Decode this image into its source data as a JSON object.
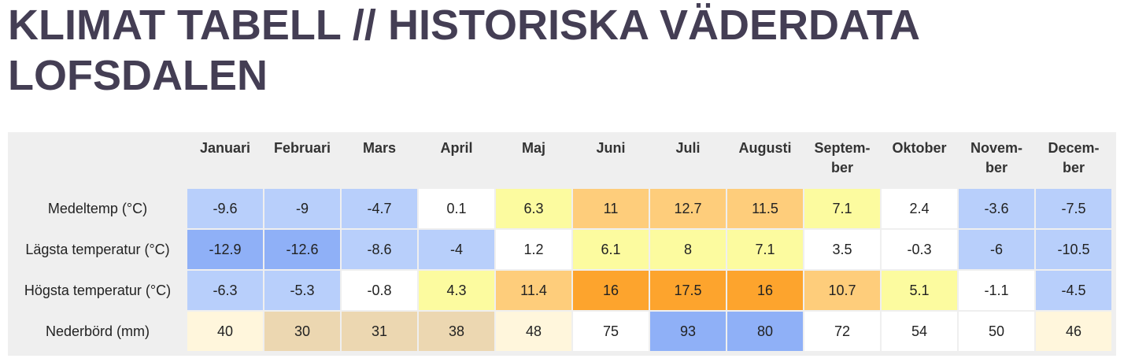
{
  "title_line1": "KLIMAT TABELL // HISTORISKA VÄDERDATA",
  "title_line2": "LOFSDALEN",
  "months": [
    "Januari",
    "Februari",
    "Mars",
    "April",
    "Maj",
    "Juni",
    "Juli",
    "Augusti",
    "Septem-\nber",
    "Oktober",
    "Novem-\nber",
    "Decem-\nber"
  ],
  "rows": [
    {
      "label": "Medeltemp (°C)",
      "values": [
        "-9.6",
        "-9",
        "-4.7",
        "0.1",
        "6.3",
        "11",
        "12.7",
        "11.5",
        "7.1",
        "2.4",
        "-3.6",
        "-7.5"
      ],
      "colors": [
        "#b8cffb",
        "#b8cffb",
        "#b8cffb",
        "#ffffff",
        "#fcfb9f",
        "#fecd7b",
        "#fecd7b",
        "#fecd7b",
        "#fcfb9f",
        "#ffffff",
        "#b8cffb",
        "#b8cffb"
      ]
    },
    {
      "label": "Lägsta temperatur (°C)",
      "values": [
        "-12.9",
        "-12.6",
        "-8.6",
        "-4",
        "1.2",
        "6.1",
        "8",
        "7.1",
        "3.5",
        "-0.3",
        "-6",
        "-10.5"
      ],
      "colors": [
        "#8fb0f7",
        "#8fb0f7",
        "#b8cffb",
        "#b8cffb",
        "#ffffff",
        "#fcfb9f",
        "#fcfb9f",
        "#fcfb9f",
        "#ffffff",
        "#ffffff",
        "#b8cffb",
        "#b8cffb"
      ]
    },
    {
      "label": "Högsta temperatur (°C)",
      "values": [
        "-6.3",
        "-5.3",
        "-0.8",
        "4.3",
        "11.4",
        "16",
        "17.5",
        "16",
        "10.7",
        "5.1",
        "-1.1",
        "-4.5"
      ],
      "colors": [
        "#b8cffb",
        "#b8cffb",
        "#ffffff",
        "#fcfb9f",
        "#fecd7b",
        "#fda42d",
        "#fda42d",
        "#fda42d",
        "#fecd7b",
        "#fcfb9f",
        "#ffffff",
        "#b8cffb"
      ]
    },
    {
      "label": "Nederbörd (mm)",
      "values": [
        "40",
        "30",
        "31",
        "38",
        "48",
        "75",
        "93",
        "80",
        "72",
        "54",
        "50",
        "46"
      ],
      "colors": [
        "#fff6dc",
        "#ecd7b1",
        "#ecd7b1",
        "#ecd7b1",
        "#fff6dc",
        "#ffffff",
        "#8fb0f7",
        "#8fb0f7",
        "#ffffff",
        "#ffffff",
        "#ffffff",
        "#fff6dc"
      ]
    }
  ]
}
